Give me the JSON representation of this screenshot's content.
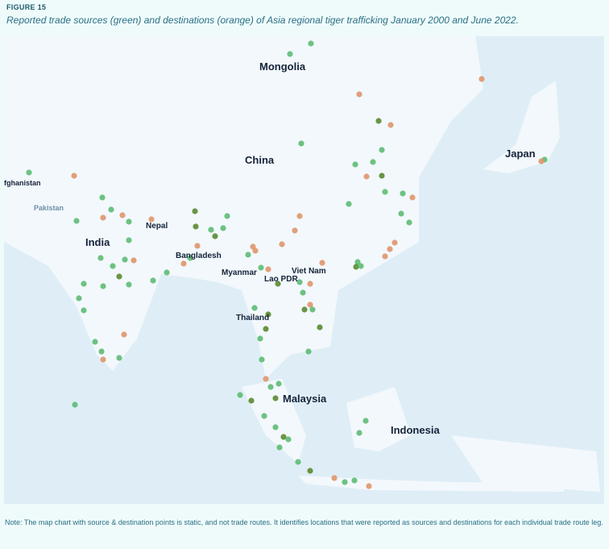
{
  "header": {
    "label": "FIGURE 15",
    "title": "Reported trade sources (green) and destinations (orange) of Asia regional tiger trafficking January 2000 and June 2022."
  },
  "labels": [
    "Mongolia",
    "China",
    "Japan",
    "fghanistan",
    "Pakistan",
    "India",
    "Nepal",
    "Bangladesh",
    "Myanmar",
    "Viet Nam",
    "Lao PDR",
    "Thailand",
    "Malaysia",
    "Indonesia"
  ],
  "footer": {
    "note": "Note: The map chart with source & destination points is static, and not trade routes. It identifies locations that were reported as sources and destinations for each individual trade route leg."
  }
}
